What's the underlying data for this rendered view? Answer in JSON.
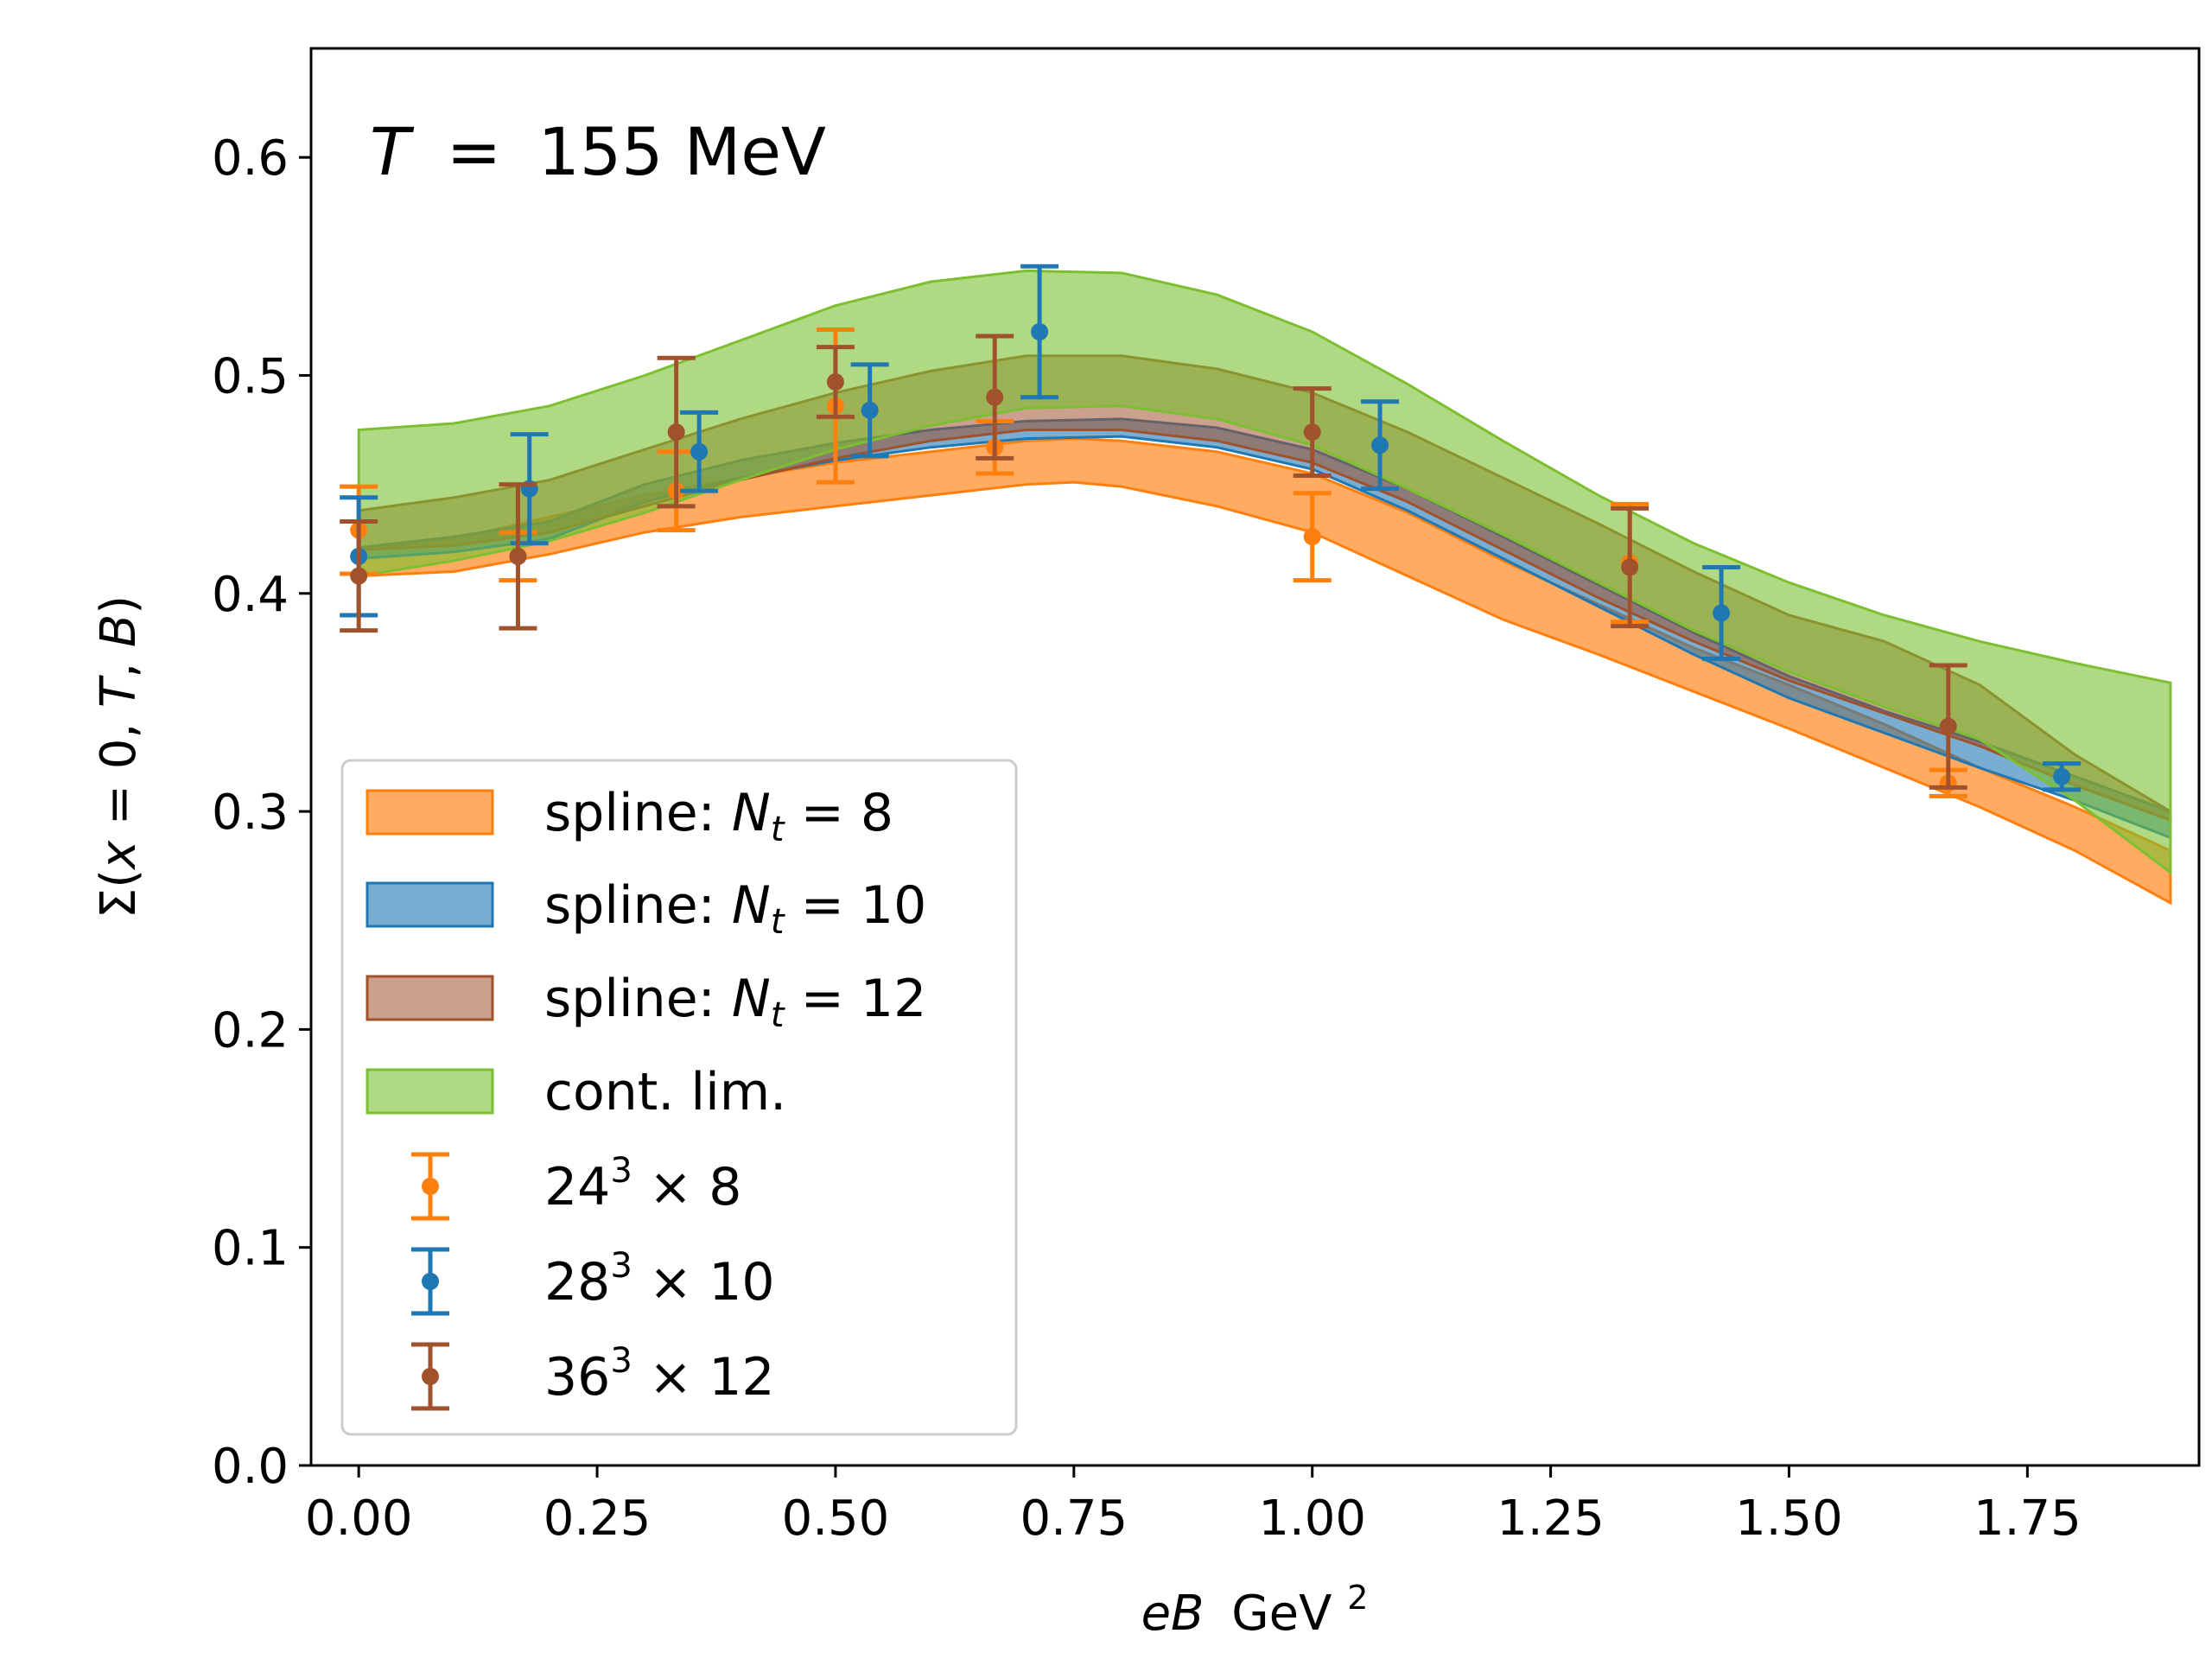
{
  "chart_data": {
    "type": "line",
    "title": "",
    "annotation": {
      "var": "T",
      "eq": "=",
      "value": "155 MeV"
    },
    "xlabel": {
      "var": "eB",
      "unit": "GeV",
      "sup": "2"
    },
    "ylabel": {
      "sigma": "Σ(",
      "x": "x",
      "eq": " = 0, ",
      "T": "T",
      "comma": ", ",
      "B": "B",
      "close": ")"
    },
    "xlim": [
      -0.05,
      1.93
    ],
    "ylim": [
      0.0,
      0.65
    ],
    "xticks": [
      "0.00",
      "0.25",
      "0.50",
      "0.75",
      "1.00",
      "1.25",
      "1.50",
      "1.75"
    ],
    "xtick_values": [
      0.0,
      0.25,
      0.5,
      0.75,
      1.0,
      1.25,
      1.5,
      1.75
    ],
    "yticks": [
      "0.0",
      "0.1",
      "0.2",
      "0.3",
      "0.4",
      "0.5",
      "0.6"
    ],
    "ytick_values": [
      0.0,
      0.1,
      0.2,
      0.3,
      0.4,
      0.5,
      0.6
    ],
    "bands": [
      {
        "name": "spline: Nt = 8",
        "label_text": "spline: ",
        "label_var": "N",
        "label_sub": "t",
        "label_eq": " = 8",
        "color": "#ff7f0e",
        "opacity": 0.65,
        "x": [
          0.0,
          0.1,
          0.2,
          0.3,
          0.4,
          0.5,
          0.6,
          0.7,
          0.75,
          0.8,
          0.9,
          1.0,
          1.1,
          1.2,
          1.3,
          1.4,
          1.5,
          1.6,
          1.7,
          1.8,
          1.9
        ],
        "lower": [
          0.408,
          0.41,
          0.418,
          0.428,
          0.435,
          0.44,
          0.445,
          0.45,
          0.451,
          0.449,
          0.44,
          0.428,
          0.408,
          0.388,
          0.372,
          0.355,
          0.338,
          0.32,
          0.302,
          0.282,
          0.258
        ],
        "upper": [
          0.42,
          0.425,
          0.435,
          0.445,
          0.453,
          0.46,
          0.465,
          0.47,
          0.471,
          0.47,
          0.465,
          0.455,
          0.437,
          0.415,
          0.395,
          0.375,
          0.358,
          0.34,
          0.32,
          0.302,
          0.282
        ]
      },
      {
        "name": "spline: Nt = 10",
        "label_text": "spline: ",
        "label_var": "N",
        "label_sub": "t",
        "label_eq": " = 10",
        "color": "#1f77b4",
        "opacity": 0.6,
        "x": [
          0.0,
          0.1,
          0.2,
          0.3,
          0.4,
          0.5,
          0.6,
          0.7,
          0.8,
          0.9,
          1.0,
          1.1,
          1.2,
          1.3,
          1.4,
          1.5,
          1.6,
          1.7,
          1.8,
          1.9
        ],
        "lower": [
          0.416,
          0.419,
          0.425,
          0.442,
          0.453,
          0.461,
          0.467,
          0.471,
          0.472,
          0.467,
          0.457,
          0.438,
          0.416,
          0.394,
          0.372,
          0.352,
          0.336,
          0.32,
          0.305,
          0.288
        ],
        "upper": [
          0.421,
          0.426,
          0.433,
          0.45,
          0.461,
          0.469,
          0.475,
          0.479,
          0.48,
          0.476,
          0.466,
          0.448,
          0.426,
          0.404,
          0.382,
          0.362,
          0.346,
          0.332,
          0.316,
          0.3
        ]
      },
      {
        "name": "spline: Nt = 12",
        "label_text": "spline: ",
        "label_var": "N",
        "label_sub": "t",
        "label_eq": " = 12",
        "color": "#a0522d",
        "opacity": 0.55,
        "x": [
          0.0,
          0.1,
          0.2,
          0.3,
          0.4,
          0.5,
          0.6,
          0.7,
          0.8,
          0.9,
          1.0,
          1.1,
          1.2,
          1.3,
          1.4,
          1.5,
          1.6,
          1.7,
          1.8,
          1.9
        ],
        "lower": [
          0.42,
          0.422,
          0.428,
          0.44,
          0.452,
          0.462,
          0.47,
          0.475,
          0.475,
          0.47,
          0.46,
          0.442,
          0.42,
          0.398,
          0.378,
          0.36,
          0.345,
          0.33,
          0.312,
          0.296
        ],
        "upper": [
          0.438,
          0.444,
          0.452,
          0.466,
          0.48,
          0.492,
          0.502,
          0.509,
          0.509,
          0.503,
          0.492,
          0.474,
          0.453,
          0.432,
          0.41,
          0.39,
          0.378,
          0.358,
          0.326,
          0.3
        ]
      },
      {
        "name": "cont. lim.",
        "label_text": "cont. lim.",
        "color": "#7cbf31",
        "opacity": 0.6,
        "x": [
          0.0,
          0.1,
          0.2,
          0.3,
          0.4,
          0.5,
          0.6,
          0.7,
          0.8,
          0.9,
          1.0,
          1.1,
          1.2,
          1.3,
          1.4,
          1.5,
          1.6,
          1.7,
          1.8,
          1.9
        ],
        "lower": [
          0.408,
          0.415,
          0.424,
          0.437,
          0.452,
          0.466,
          0.477,
          0.485,
          0.486,
          0.48,
          0.468,
          0.448,
          0.427,
          0.405,
          0.383,
          0.364,
          0.348,
          0.333,
          0.305,
          0.272
        ],
        "upper": [
          0.475,
          0.478,
          0.486,
          0.5,
          0.516,
          0.532,
          0.543,
          0.548,
          0.547,
          0.537,
          0.52,
          0.496,
          0.47,
          0.445,
          0.423,
          0.405,
          0.39,
          0.378,
          0.368,
          0.359
        ]
      }
    ],
    "series": [
      {
        "name": "24^3 x 8",
        "label_base": "24",
        "label_sup": "3",
        "label_rest": " × 8",
        "color": "#ff7f0e",
        "x": [
          0.0,
          0.167,
          0.333,
          0.5,
          0.667,
          1.0,
          1.333,
          1.667
        ],
        "y": [
          0.429,
          0.417,
          0.447,
          0.486,
          0.467,
          0.426,
          0.414,
          0.313
        ],
        "err": [
          0.02,
          0.011,
          0.018,
          0.035,
          0.012,
          0.02,
          0.027,
          0.006
        ]
      },
      {
        "name": "28^3 x 10",
        "label_base": "28",
        "label_sup": "3",
        "label_rest": " × 10",
        "color": "#1f77b4",
        "x": [
          0.0,
          0.179,
          0.357,
          0.536,
          0.714,
          1.071,
          1.429,
          1.786
        ],
        "y": [
          0.417,
          0.448,
          0.465,
          0.484,
          0.52,
          0.468,
          0.391,
          0.316
        ],
        "err": [
          0.027,
          0.025,
          0.018,
          0.021,
          0.03,
          0.02,
          0.021,
          0.006
        ]
      },
      {
        "name": "36^3 x 12",
        "label_base": "36",
        "label_sup": "3",
        "label_rest": " × 12",
        "color": "#a0522d",
        "x": [
          0.0,
          0.167,
          0.333,
          0.5,
          0.667,
          1.0,
          1.333,
          1.667
        ],
        "y": [
          0.408,
          0.417,
          0.474,
          0.497,
          0.49,
          0.474,
          0.412,
          0.339
        ],
        "err": [
          0.025,
          0.033,
          0.034,
          0.016,
          0.028,
          0.02,
          0.027,
          0.028
        ]
      }
    ],
    "legend_position": "lower-left"
  }
}
